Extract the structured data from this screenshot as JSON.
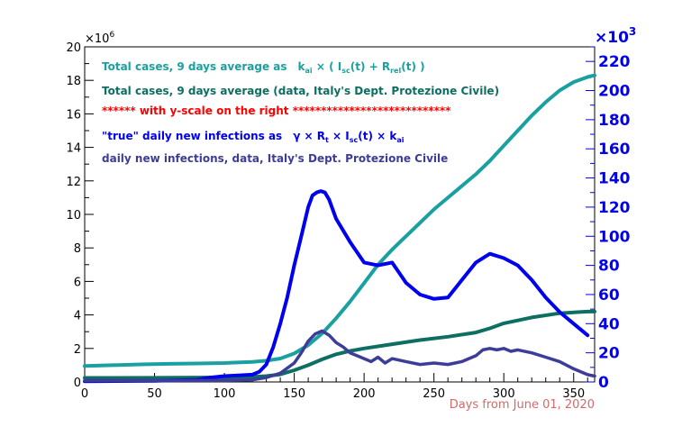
{
  "chart_data": {
    "type": "line",
    "xlabel": "Days from June 01, 2020",
    "xlim": [
      0,
      365
    ],
    "left_axis": {
      "ylim": [
        0,
        20
      ],
      "multiplier_label": "×10",
      "multiplier_exp": "6",
      "ticks": [
        0,
        2,
        4,
        6,
        8,
        10,
        12,
        14,
        16,
        18,
        20
      ]
    },
    "right_axis": {
      "ylim": [
        0,
        230
      ],
      "multiplier_label": "×10",
      "multiplier_exp": "3",
      "ticks": [
        0,
        20,
        40,
        60,
        80,
        100,
        120,
        140,
        160,
        180,
        200,
        220
      ],
      "color": "#0000ee"
    },
    "x_ticks": [
      0,
      50,
      100,
      150,
      200,
      250,
      300,
      350
    ],
    "legend": {
      "model_total": {
        "text": "Total cases, 9 days average  as",
        "formula": "k",
        "color": "#1aa0a0"
      },
      "data_total": {
        "text": "Total cases, 9 days average (data, Italy's Dept. Protezione Civile)",
        "color": "#0d6e62"
      },
      "note": {
        "text": "****** with y-scale on the right ****************************",
        "color": "#ff0000"
      },
      "true_daily": {
        "text": "\"true\" daily new infections as",
        "color": "#0000ee"
      },
      "data_daily": {
        "text": "daily new infections, data, Italy's Dept. Protezione Civile",
        "color": "#3d3d99"
      }
    },
    "series": [
      {
        "name": "Total cases model (left axis, millions)",
        "axis": "left",
        "color": "#1aa0a0",
        "x": [
          0,
          20,
          40,
          60,
          80,
          100,
          120,
          130,
          140,
          150,
          160,
          170,
          180,
          190,
          200,
          210,
          220,
          230,
          240,
          250,
          260,
          270,
          280,
          290,
          300,
          310,
          320,
          330,
          340,
          350,
          360,
          365
        ],
        "values": [
          0.95,
          1.0,
          1.05,
          1.08,
          1.1,
          1.13,
          1.2,
          1.27,
          1.4,
          1.7,
          2.2,
          2.9,
          3.8,
          4.8,
          5.9,
          7.0,
          7.9,
          8.7,
          9.5,
          10.3,
          11.0,
          11.7,
          12.4,
          13.2,
          14.1,
          15.0,
          15.9,
          16.7,
          17.4,
          17.9,
          18.2,
          18.3
        ]
      },
      {
        "name": "Total cases data (left axis, millions)",
        "axis": "left",
        "color": "#0d6e62",
        "x": [
          0,
          50,
          100,
          120,
          130,
          140,
          150,
          160,
          170,
          180,
          190,
          200,
          220,
          240,
          260,
          280,
          290,
          300,
          320,
          340,
          360,
          365
        ],
        "values": [
          0.24,
          0.25,
          0.27,
          0.3,
          0.35,
          0.45,
          0.7,
          1.0,
          1.35,
          1.65,
          1.85,
          2.0,
          2.25,
          2.5,
          2.7,
          2.95,
          3.2,
          3.5,
          3.85,
          4.1,
          4.2,
          4.2
        ]
      },
      {
        "name": "\"true\" daily new infections model (right axis, thousands)",
        "axis": "right",
        "color": "#0000ee",
        "x": [
          0,
          50,
          80,
          90,
          100,
          110,
          120,
          125,
          130,
          135,
          140,
          145,
          150,
          155,
          160,
          163,
          166,
          169,
          172,
          175,
          180,
          190,
          200,
          210,
          220,
          230,
          240,
          250,
          260,
          270,
          280,
          290,
          300,
          310,
          320,
          330,
          340,
          350,
          360
        ],
        "values": [
          0.5,
          0.8,
          1.5,
          3.0,
          4.0,
          4.5,
          5.0,
          7.0,
          12.0,
          24.0,
          40.0,
          58.0,
          80.0,
          100.0,
          120.0,
          128.0,
          130.0,
          131.0,
          130.0,
          125.0,
          112.0,
          96.0,
          82.0,
          80.0,
          82.0,
          68.0,
          60.0,
          57.0,
          58.0,
          70.0,
          82.0,
          88.0,
          85.0,
          80.0,
          70.0,
          58.0,
          48.0,
          40.0,
          32.0
        ]
      },
      {
        "name": "daily new infections data (right axis, thousands)",
        "axis": "right",
        "color": "#3d3d99",
        "x": [
          0,
          50,
          100,
          120,
          130,
          140,
          150,
          155,
          160,
          165,
          170,
          175,
          180,
          185,
          190,
          195,
          200,
          205,
          210,
          215,
          220,
          230,
          240,
          250,
          260,
          270,
          280,
          285,
          290,
          295,
          300,
          305,
          310,
          320,
          330,
          340,
          350,
          360,
          365
        ],
        "values": [
          1.0,
          1.0,
          1.0,
          1.5,
          3.0,
          6.0,
          13.0,
          20.0,
          28.0,
          33.0,
          35.0,
          32.0,
          27.0,
          24.0,
          20.0,
          18.0,
          16.0,
          14.0,
          17.0,
          13.0,
          16.0,
          14.0,
          12.0,
          13.0,
          12.0,
          14.0,
          18.0,
          22.0,
          23.0,
          22.0,
          23.0,
          21.0,
          22.0,
          20.0,
          17.0,
          14.0,
          9.0,
          5.0,
          4.0
        ]
      }
    ]
  }
}
